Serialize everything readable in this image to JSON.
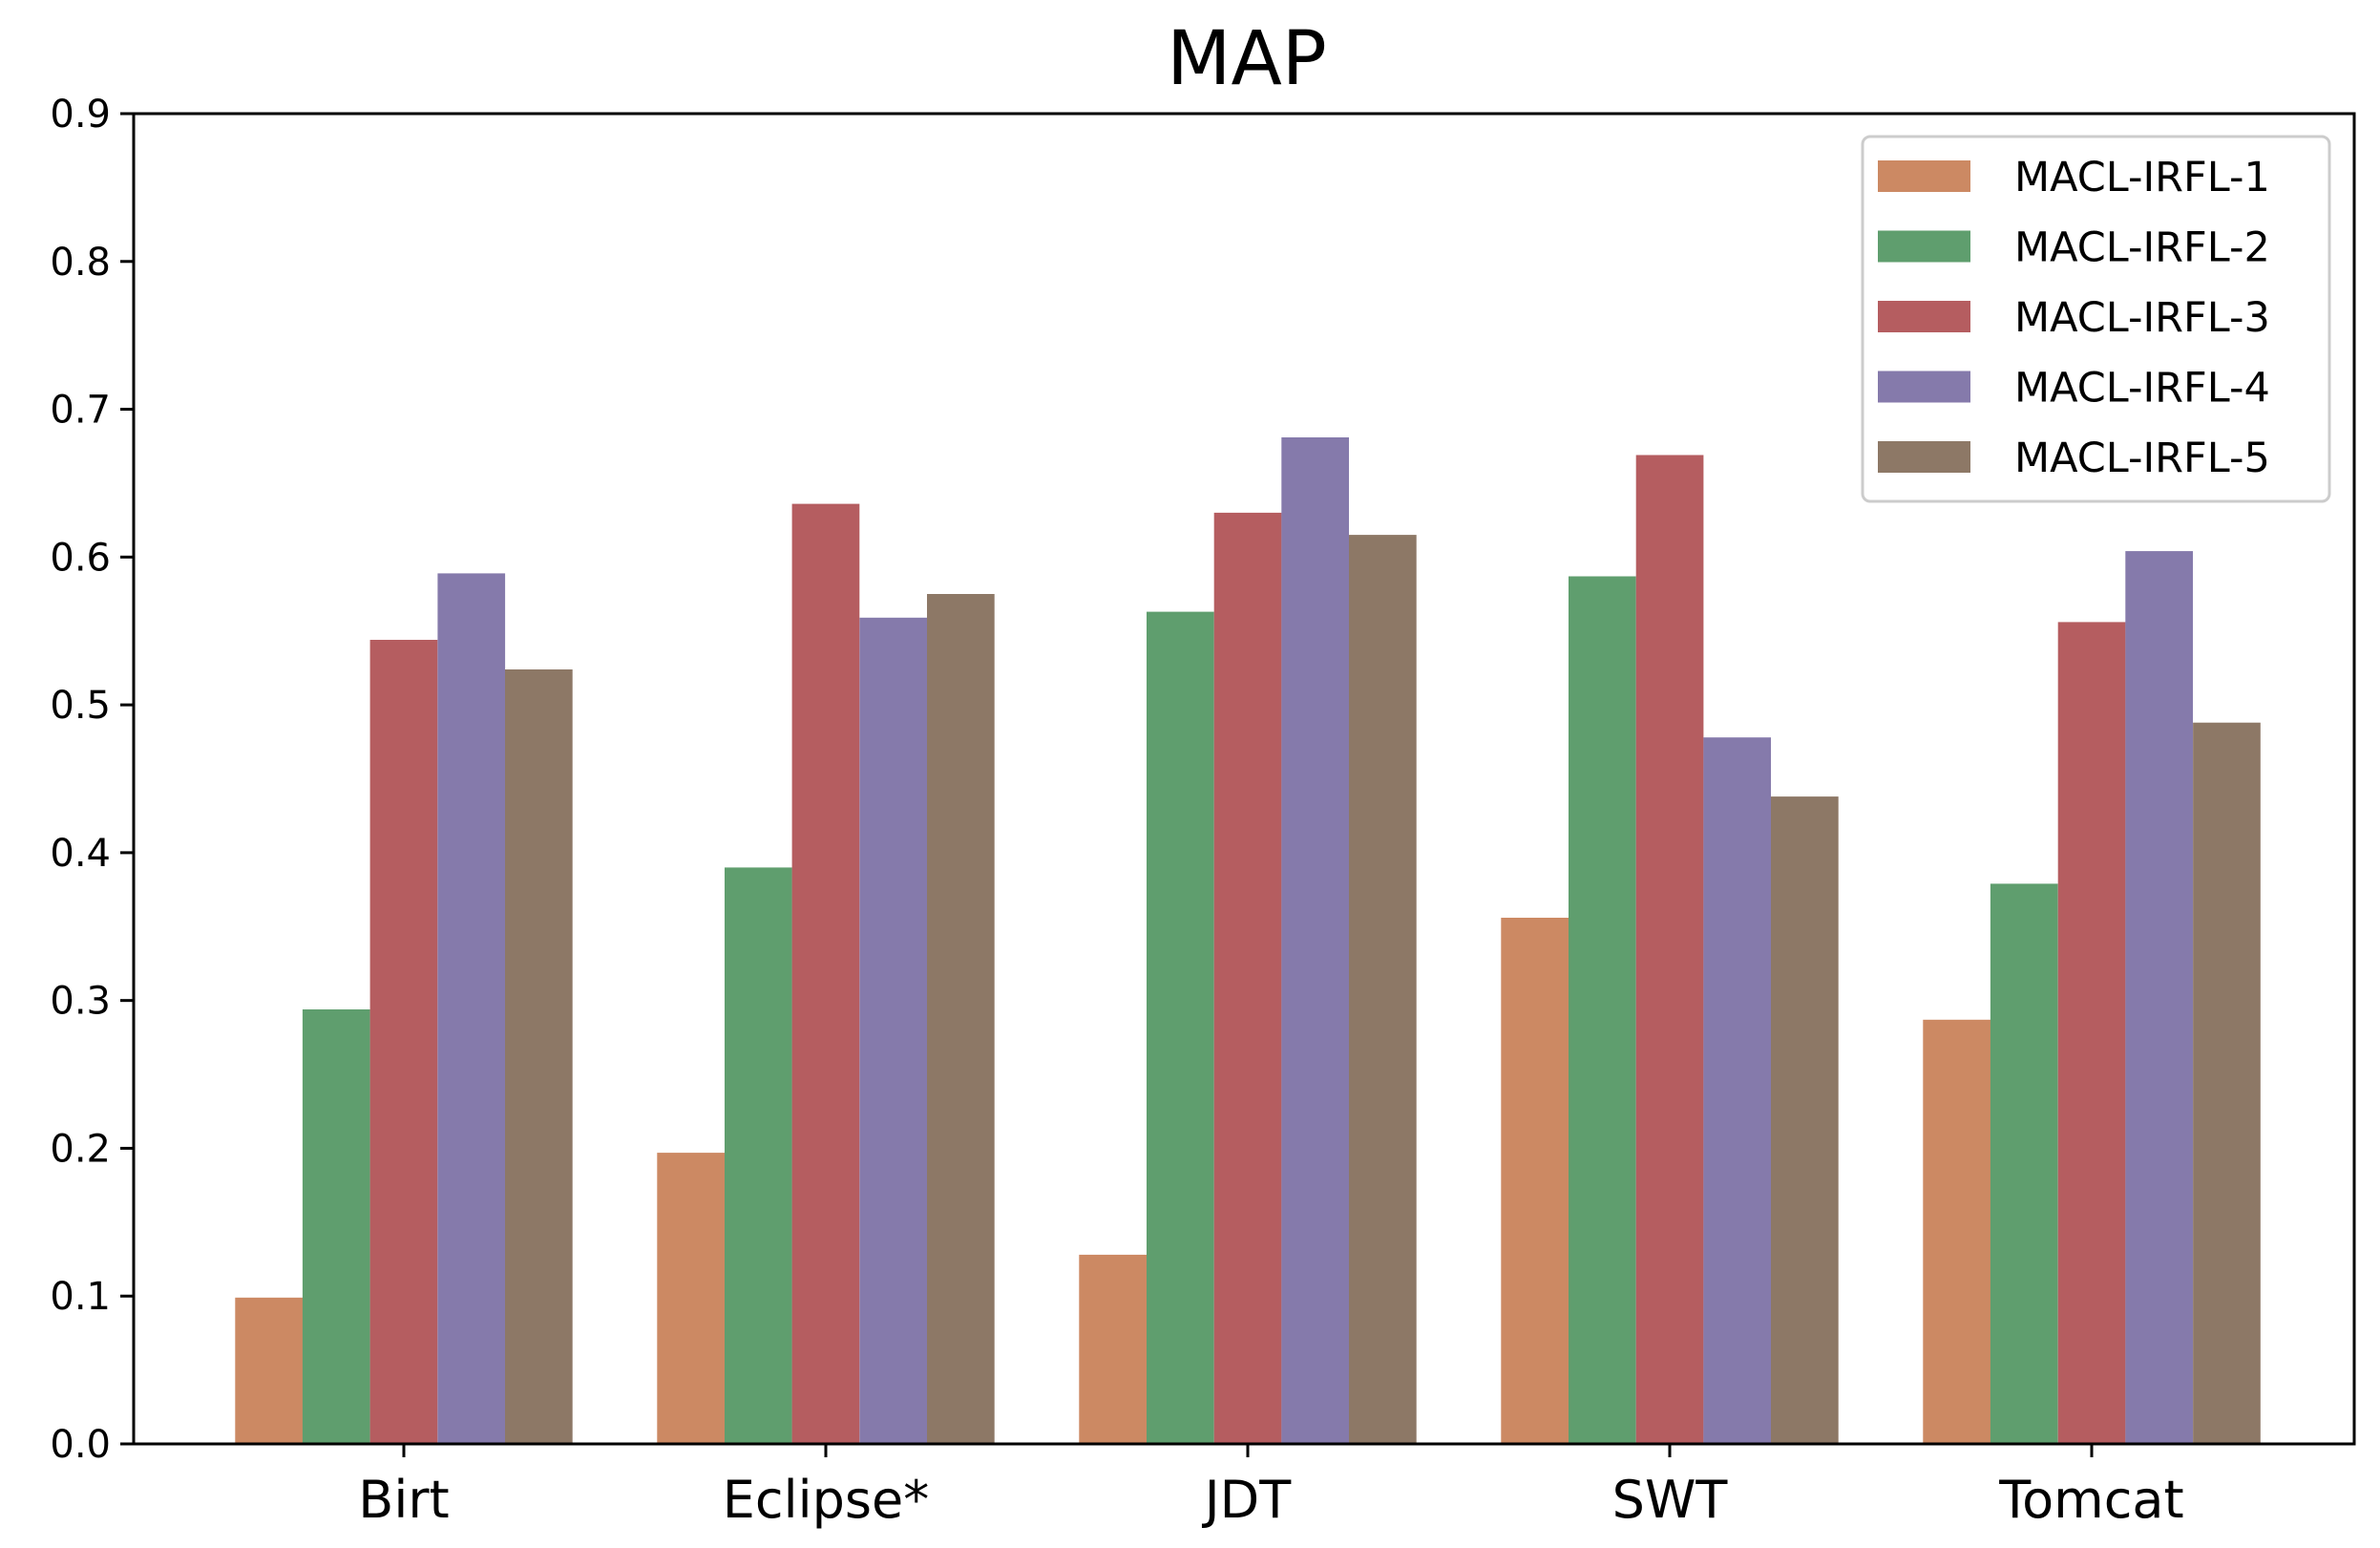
{
  "chart_data": {
    "type": "bar",
    "title": "MAP",
    "xlabel": "",
    "ylabel": "",
    "ylim": [
      0,
      0.9
    ],
    "yticks": [
      "0.0",
      "0.1",
      "0.2",
      "0.3",
      "0.4",
      "0.5",
      "0.6",
      "0.7",
      "0.8",
      "0.9"
    ],
    "categories": [
      "Birt",
      "Eclipse*",
      "JDT",
      "SWT",
      "Tomcat"
    ],
    "legend_position": "top-right",
    "grid": false,
    "series": [
      {
        "name": "MACL-IRFL-1",
        "color": "#cc8963",
        "values": [
          0.099,
          0.197,
          0.128,
          0.356,
          0.287
        ]
      },
      {
        "name": "MACL-IRFL-2",
        "color": "#5f9e6e",
        "values": [
          0.294,
          0.39,
          0.563,
          0.587,
          0.379
        ]
      },
      {
        "name": "MACL-IRFL-3",
        "color": "#b55d60",
        "values": [
          0.544,
          0.636,
          0.63,
          0.669,
          0.556
        ]
      },
      {
        "name": "MACL-IRFL-4",
        "color": "#857aab",
        "values": [
          0.589,
          0.559,
          0.681,
          0.478,
          0.604
        ]
      },
      {
        "name": "MACL-IRFL-5",
        "color": "#8d7866",
        "values": [
          0.524,
          0.575,
          0.615,
          0.438,
          0.488
        ]
      }
    ]
  }
}
